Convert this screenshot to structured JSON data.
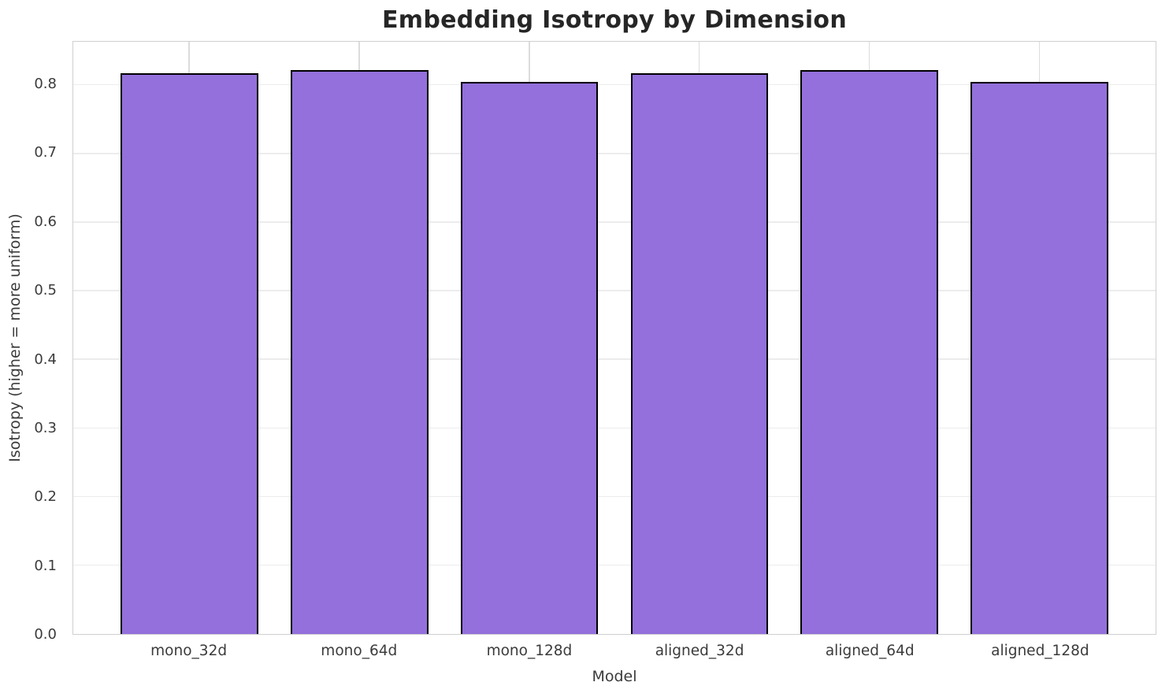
{
  "chart_data": {
    "type": "bar",
    "title": "Embedding Isotropy by Dimension",
    "xlabel": "Model",
    "ylabel": "Isotropy (higher = more uniform)",
    "categories": [
      "mono_32d",
      "mono_64d",
      "mono_128d",
      "aligned_32d",
      "aligned_64d",
      "aligned_128d"
    ],
    "values": [
      0.817,
      0.822,
      0.805,
      0.817,
      0.822,
      0.805
    ],
    "yticks": [
      0.0,
      0.1,
      0.2,
      0.3,
      0.4,
      0.5,
      0.6,
      0.7,
      0.8
    ],
    "ylim": [
      0,
      0.863
    ],
    "xlim": [
      -0.683,
      5.683
    ],
    "bar_width_units": 0.809,
    "grid": true,
    "legend": "none",
    "bar_color": "#9370DB",
    "bar_edge_color": "#000000",
    "background_color": "#ffffff",
    "grid_color": "#ececec",
    "spine_color": "#cfcfcf",
    "text_color": "#3b3b3b",
    "title_color": "#262626"
  }
}
